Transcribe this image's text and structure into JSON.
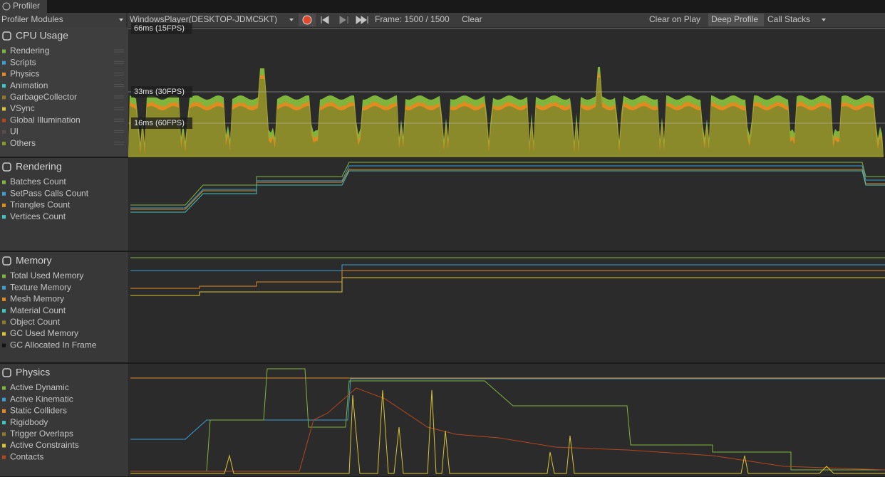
{
  "tab": "Profiler",
  "toolbar": {
    "modules_dropdown": "Profiler Modules",
    "target": "WindowsPlayer(DESKTOP-JDMC5KT)",
    "frame": "Frame: 1500 / 1500",
    "clear": "Clear",
    "clear_on_play": "Clear on Play",
    "deep_profile": "Deep Profile",
    "call_stacks": "Call Stacks"
  },
  "modules": [
    {
      "title": "CPU Usage",
      "markers": [
        "66ms (15FPS)",
        "33ms (30FPS)",
        "16ms (60FPS)"
      ],
      "items": [
        {
          "label": "Rendering",
          "color": "#7fb53c"
        },
        {
          "label": "Scripts",
          "color": "#3a9fd5"
        },
        {
          "label": "Physics",
          "color": "#e08a20"
        },
        {
          "label": "Animation",
          "color": "#3ec6c0"
        },
        {
          "label": "GarbageCollector",
          "color": "#8a7a2a"
        },
        {
          "label": "VSync",
          "color": "#d9c435"
        },
        {
          "label": "Global Illumination",
          "color": "#b5471d"
        },
        {
          "label": "UI",
          "color": "#5c4b4b"
        },
        {
          "label": "Others",
          "color": "#8a9a2a"
        }
      ]
    },
    {
      "title": "Rendering",
      "items": [
        {
          "label": "Batches Count",
          "color": "#7fb53c"
        },
        {
          "label": "SetPass Calls Count",
          "color": "#3a9fd5"
        },
        {
          "label": "Triangles Count",
          "color": "#e08a20"
        },
        {
          "label": "Vertices Count",
          "color": "#3ec6c0"
        }
      ]
    },
    {
      "title": "Memory",
      "items": [
        {
          "label": "Total Used Memory",
          "color": "#7fb53c"
        },
        {
          "label": "Texture Memory",
          "color": "#3a9fd5"
        },
        {
          "label": "Mesh Memory",
          "color": "#e08a20"
        },
        {
          "label": "Material Count",
          "color": "#3ec6c0"
        },
        {
          "label": "Object Count",
          "color": "#8a7a2a"
        },
        {
          "label": "GC Used Memory",
          "color": "#d9c435"
        },
        {
          "label": "GC Allocated In Frame",
          "color": "#111111"
        }
      ]
    },
    {
      "title": "Physics",
      "items": [
        {
          "label": "Active Dynamic",
          "color": "#7fb53c"
        },
        {
          "label": "Active Kinematic",
          "color": "#3a9fd5"
        },
        {
          "label": "Static Colliders",
          "color": "#e08a20"
        },
        {
          "label": "Rigidbody",
          "color": "#3ec6c0"
        },
        {
          "label": "Trigger Overlaps",
          "color": "#8a7a2a"
        },
        {
          "label": "Active Constraints",
          "color": "#d9c435"
        },
        {
          "label": "Contacts",
          "color": "#b5471d"
        }
      ]
    }
  ]
}
